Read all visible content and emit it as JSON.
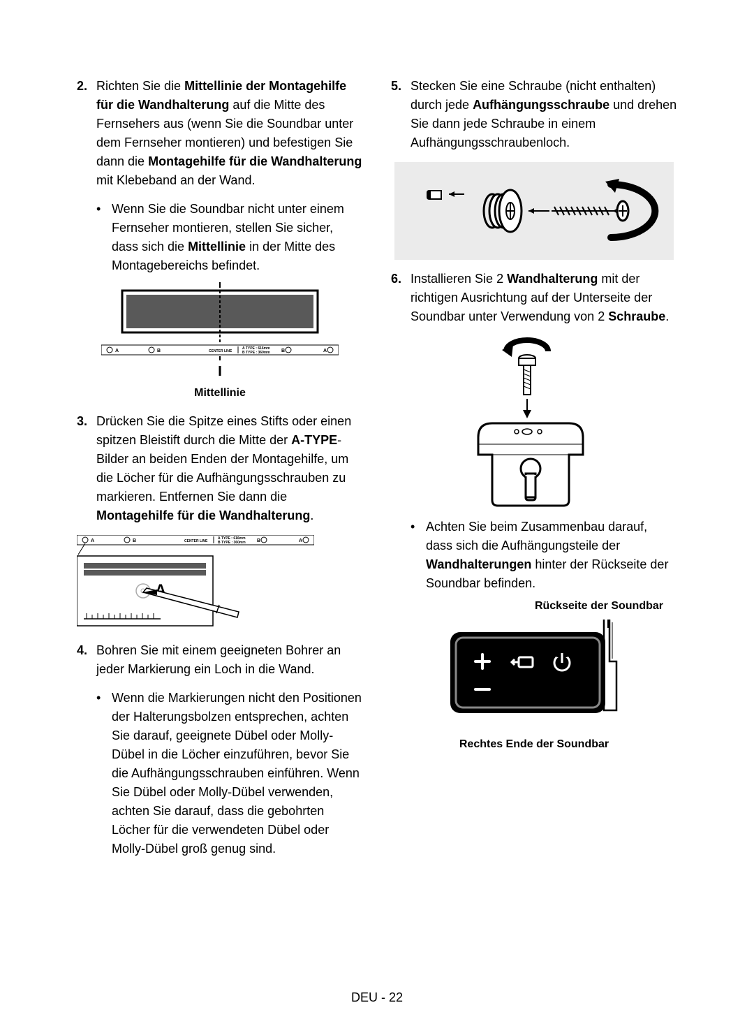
{
  "left_column": {
    "step2": {
      "num": "2.",
      "html": "Richten Sie die <b>Mittellinie der Montagehilfe für die Wandhalterung</b> auf die Mitte des Fernsehers aus (wenn Sie die Soundbar unter dem Fernseher montieren) und befestigen Sie dann die <b>Montagehilfe für die Wandhalterung</b> mit Klebeband an der Wand.",
      "bullet_html": "Wenn Sie die Soundbar nicht unter einem Fernseher montieren, stellen Sie sicher, dass sich die <b>Mittellinie</b> in der Mitte des Montagebereichs befindet."
    },
    "fig2_caption": "Mittellinie",
    "step3": {
      "num": "3.",
      "html": "Drücken Sie die Spitze eines Stifts oder einen spitzen Bleistift durch die Mitte der <b>A-TYPE</b>-Bilder an beiden Enden der Montagehilfe, um die Löcher für die Aufhängungsschrauben zu markieren. Entfernen Sie dann die <b>Montagehilfe für die Wandhalterung</b>."
    },
    "step4": {
      "num": "4.",
      "html": "Bohren Sie mit einem geeigneten Bohrer an jeder Markierung ein Loch in die Wand.",
      "bullet_html": "Wenn die Markierungen nicht den Positionen der Halterungsbolzen entsprechen, achten Sie darauf, geeignete Dübel oder Molly-Dübel in die Löcher einzuführen, bevor Sie die Aufhängungsschrauben einführen. Wenn Sie Dübel oder Molly-Dübel verwenden, achten Sie darauf, dass die gebohrten Löcher für die verwendeten Dübel oder Molly-Dübel groß genug sind."
    }
  },
  "right_column": {
    "step5": {
      "num": "5.",
      "html": "Stecken Sie eine Schraube (nicht enthalten) durch jede <b>Aufhängungsschraube</b> und drehen Sie dann jede Schraube in einem Aufhängungsschraubenloch."
    },
    "step6": {
      "num": "6.",
      "html": "Installieren Sie 2 <b>Wandhalterung</b> mit der richtigen Ausrichtung auf der Unterseite der Soundbar unter Verwendung von 2 <b>Schraube</b>.",
      "bullet_html": "Achten Sie beim Zusammenbau darauf, dass sich die Aufhängungsteile der <b>Wandhalterungen</b> hinter der Rückseite der Soundbar befinden."
    },
    "caption_top": "Rückseite der Soundbar",
    "caption_bottom": "Rechtes Ende der Soundbar"
  },
  "footer": "DEU - 22",
  "figure2": {
    "template_labels": {
      "a": "A",
      "b": "B",
      "center": "CENTER LINE",
      "atype": "A TYPE : 616mm",
      "btype": "B TYPE : 360mm"
    },
    "tv_fill": "#595959",
    "stroke": "#000000"
  },
  "figure3": {
    "template_labels": {
      "a": "A",
      "b": "B",
      "center": "CENTER LINE",
      "atype": "A TYPE : 616mm",
      "btype": "B TYPE : 360mm",
      "big_a": "A"
    }
  },
  "figure5": {
    "bg": "#ebebeb"
  },
  "figure6": {},
  "figure_side": {}
}
